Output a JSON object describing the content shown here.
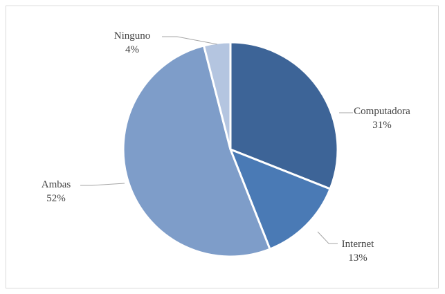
{
  "chart_data": {
    "type": "pie",
    "title": "",
    "slices": [
      {
        "name": "Computadora",
        "value": 31,
        "label": "31%",
        "color": "#3d6497"
      },
      {
        "name": "Internet",
        "value": 13,
        "label": "13%",
        "color": "#4a7ab5"
      },
      {
        "name": "Ambas",
        "value": 52,
        "label": "52%",
        "color": "#7e9dc9"
      },
      {
        "name": "Ninguno",
        "value": 4,
        "label": "4%",
        "color": "#b4c5e0"
      }
    ],
    "start_angle_deg": 0,
    "direction": "clockwise",
    "legend": "none",
    "data_labels": "outside-with-leader-lines"
  }
}
